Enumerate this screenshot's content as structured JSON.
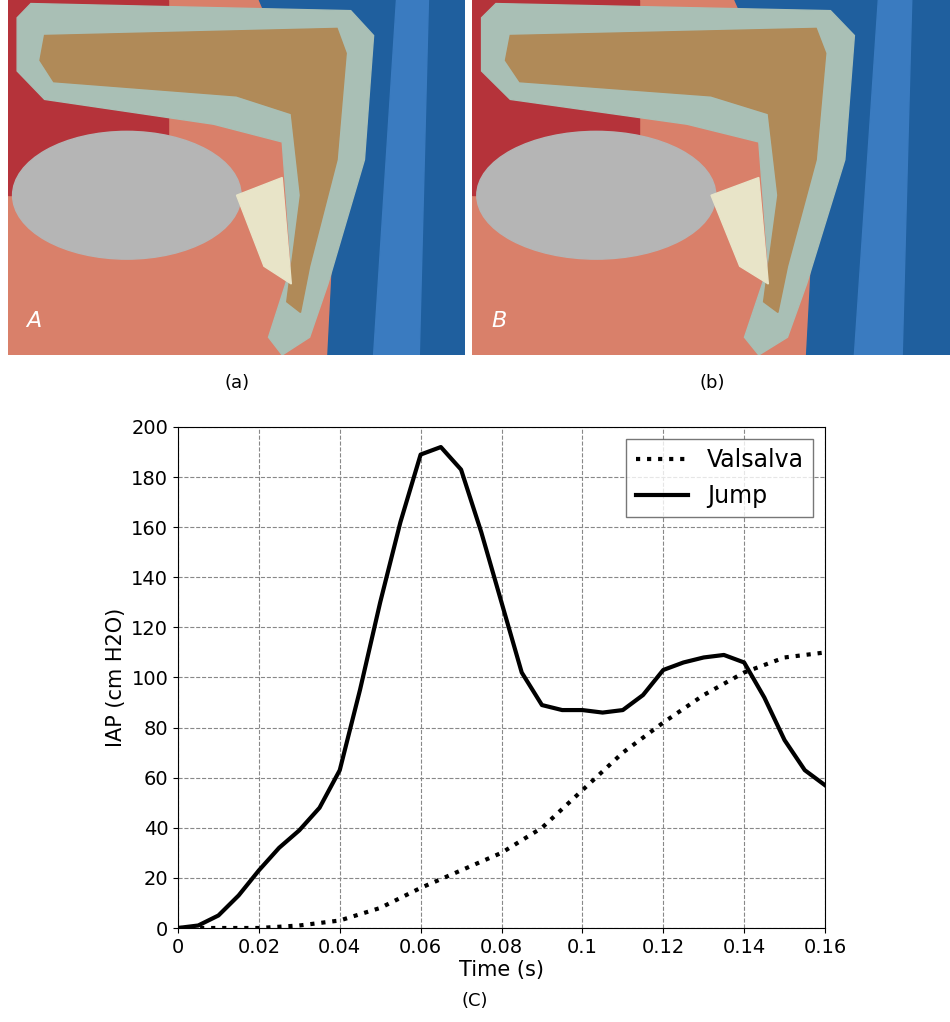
{
  "panels": [
    {
      "label": "A",
      "caption": "(a)"
    },
    {
      "label": "B",
      "caption": "(b)"
    }
  ],
  "chart_data": {
    "type": "line",
    "caption": "(C)",
    "x_label": "Time (s)",
    "y_label": "IAP (cm H2O)",
    "xlim": [
      0,
      0.16
    ],
    "xticks": [
      0,
      0.02,
      0.04,
      0.06,
      0.08,
      0.1,
      0.12,
      0.14,
      0.16
    ],
    "ylim": [
      0,
      200
    ],
    "yticks": [
      0,
      20,
      40,
      60,
      80,
      100,
      120,
      140,
      160,
      180,
      200
    ],
    "grid": true,
    "legend": "upper right",
    "series": [
      {
        "name": "Valsalva",
        "color": "#000000",
        "line_style": "dotted",
        "x": [
          0,
          0.01,
          0.02,
          0.03,
          0.04,
          0.05,
          0.06,
          0.07,
          0.08,
          0.09,
          0.1,
          0.11,
          0.12,
          0.13,
          0.14,
          0.15,
          0.16
        ],
        "values": [
          0,
          0,
          0,
          1,
          3,
          8,
          16,
          23,
          30,
          40,
          55,
          70,
          82,
          93,
          102,
          108,
          110
        ]
      },
      {
        "name": "Jump",
        "color": "#000000",
        "line_style": "solid",
        "x": [
          0,
          0.005,
          0.01,
          0.015,
          0.02,
          0.025,
          0.03,
          0.035,
          0.04,
          0.045,
          0.05,
          0.055,
          0.06,
          0.065,
          0.07,
          0.075,
          0.08,
          0.085,
          0.09,
          0.095,
          0.1,
          0.105,
          0.11,
          0.115,
          0.12,
          0.125,
          0.13,
          0.135,
          0.14,
          0.145,
          0.15,
          0.155,
          0.16
        ],
        "values": [
          0,
          1,
          5,
          13,
          23,
          32,
          39,
          48,
          63,
          95,
          130,
          162,
          189,
          192,
          183,
          158,
          130,
          102,
          89,
          87,
          87,
          86,
          87,
          93,
          103,
          106,
          108,
          109,
          106,
          92,
          75,
          63,
          57
        ]
      }
    ]
  }
}
